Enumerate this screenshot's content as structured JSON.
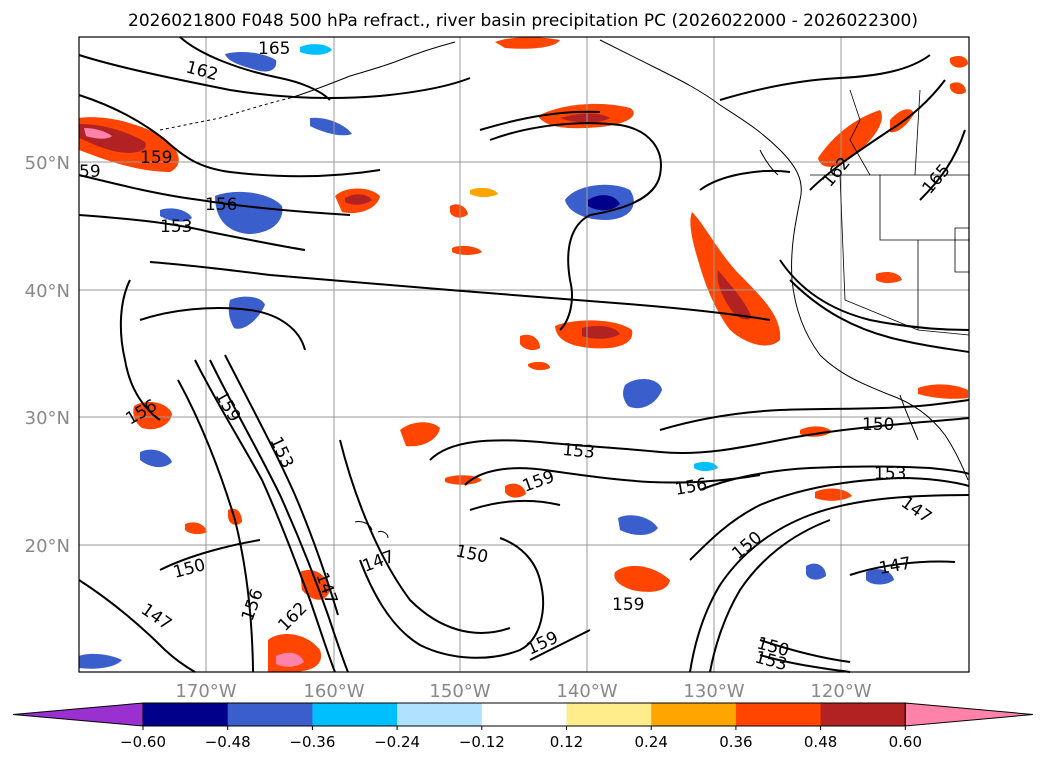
{
  "title": "2026021800 F048 500 hPa refract., river basin precipitation PC (2026022000 - 2026022300)",
  "longitude_labels": [
    "170°W",
    "160°W",
    "150°W",
    "140°W",
    "130°W",
    "120°W"
  ],
  "latitude_labels": [
    "50°N",
    "40°N",
    "30°N",
    "20°N"
  ],
  "contour_labels": [
    "165",
    "162",
    "159",
    "156",
    "153",
    "150",
    "147"
  ],
  "colorbar": {
    "ticks": [
      "−0.60",
      "−0.48",
      "−0.36",
      "−0.24",
      "−0.12",
      "0.12",
      "0.24",
      "0.36",
      "0.48",
      "0.60"
    ],
    "colors": [
      "#9b30d0",
      "#00008b",
      "#3a5fcd",
      "#00bfff",
      "#b0e2ff",
      "#ffffff",
      "#ffec8b",
      "#ffa500",
      "#ff4500",
      "#b22222",
      "#ff82ab"
    ]
  },
  "colors": {
    "coastline": "#000000",
    "contour": "#000000",
    "grid": "#999999",
    "axis_label": "#888888"
  }
}
